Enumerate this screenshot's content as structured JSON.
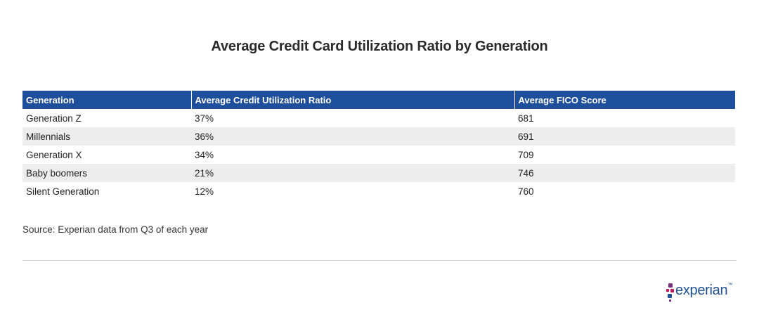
{
  "chart_data": {
    "type": "table",
    "title": "Average Credit Card Utilization Ratio by Generation",
    "columns": [
      "Generation",
      "Average Credit Utilization Ratio",
      "Average FICO Score"
    ],
    "rows": [
      [
        "Generation Z",
        "37%",
        "681"
      ],
      [
        "Millennials",
        "36%",
        "691"
      ],
      [
        "Generation X",
        "34%",
        "709"
      ],
      [
        "Baby boomers",
        "21%",
        "746"
      ],
      [
        "Silent Generation",
        "12%",
        "760"
      ]
    ],
    "source": "Source: Experian data from Q3 of each year"
  },
  "brand": {
    "logo_text": "experian",
    "trademark": "™",
    "colors": {
      "header_bg": "#1e4f9c",
      "row_alt_bg": "#ededed",
      "logo_text": "#1d4f91",
      "dot_purple": "#7b2d7f",
      "dot_magenta": "#c2185b",
      "dot_blue": "#1d4f91"
    }
  }
}
